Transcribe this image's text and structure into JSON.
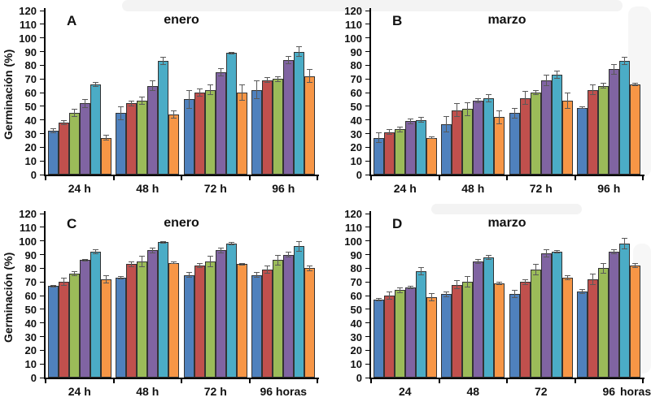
{
  "figure": {
    "y_axis_title": "Germinación (%)",
    "palette": [
      "#4F81BD",
      "#C0504D",
      "#9BBB59",
      "#8064A2",
      "#4BACC6",
      "#F79646"
    ],
    "error_bar_color": "#595959"
  },
  "chart_data": [
    {
      "type": "bar",
      "panel_label": "A",
      "title": "enero",
      "xlabel": "",
      "ylabel": "Germinación (%)",
      "x_suffix": "",
      "categories": [
        "24 h",
        "48 h",
        "72 h",
        "96 h"
      ],
      "ylim": [
        0,
        120
      ],
      "ytick_step": 10,
      "grid": false,
      "legend": "none",
      "series": [
        {
          "color": "#4F81BD",
          "values": [
            32,
            45,
            55,
            62
          ],
          "errors": [
            2,
            5,
            7,
            7
          ]
        },
        {
          "color": "#C0504D",
          "values": [
            38,
            52,
            60,
            69
          ],
          "errors": [
            2,
            2,
            3,
            2
          ]
        },
        {
          "color": "#9BBB59",
          "values": [
            45,
            54,
            62,
            70
          ],
          "errors": [
            3,
            3,
            4,
            2
          ]
        },
        {
          "color": "#8064A2",
          "values": [
            52,
            65,
            75,
            84
          ],
          "errors": [
            3,
            4,
            3,
            3
          ]
        },
        {
          "color": "#4BACC6",
          "values": [
            66,
            83,
            89,
            90
          ],
          "errors": [
            2,
            3,
            1,
            4
          ]
        },
        {
          "color": "#F79646",
          "values": [
            27,
            44,
            60,
            72
          ],
          "errors": [
            2,
            3,
            6,
            5
          ]
        }
      ]
    },
    {
      "type": "bar",
      "panel_label": "B",
      "title": "marzo",
      "xlabel": "",
      "ylabel": "",
      "x_suffix": "",
      "categories": [
        "24 h",
        "48 h",
        "72 h",
        "96 h"
      ],
      "ylim": [
        0,
        120
      ],
      "ytick_step": 10,
      "grid": false,
      "legend": "none",
      "series": [
        {
          "color": "#4F81BD",
          "values": [
            27,
            37,
            45,
            49
          ],
          "errors": [
            4,
            6,
            4,
            1
          ]
        },
        {
          "color": "#C0504D",
          "values": [
            31,
            47,
            56,
            62
          ],
          "errors": [
            2,
            5,
            5,
            4
          ]
        },
        {
          "color": "#9BBB59",
          "values": [
            33,
            48,
            60,
            65
          ],
          "errors": [
            2,
            5,
            2,
            2
          ]
        },
        {
          "color": "#8064A2",
          "values": [
            39,
            54,
            69,
            77
          ],
          "errors": [
            2,
            2,
            4,
            4
          ]
        },
        {
          "color": "#4BACC6",
          "values": [
            40,
            56,
            73,
            83
          ],
          "errors": [
            2,
            3,
            3,
            3
          ]
        },
        {
          "color": "#F79646",
          "values": [
            27,
            42,
            54,
            66
          ],
          "errors": [
            1,
            5,
            6,
            1
          ]
        }
      ]
    },
    {
      "type": "bar",
      "panel_label": "C",
      "title": "enero",
      "xlabel": "",
      "ylabel": "Germinación (%)",
      "x_suffix": "",
      "categories": [
        "24 h",
        "48 h",
        "72 h",
        "96 horas"
      ],
      "ylim": [
        0,
        120
      ],
      "ytick_step": 10,
      "grid": false,
      "legend": "none",
      "series": [
        {
          "color": "#4F81BD",
          "values": [
            67,
            73,
            75,
            75
          ],
          "errors": [
            1,
            1,
            2,
            2
          ]
        },
        {
          "color": "#C0504D",
          "values": [
            70,
            83,
            82,
            79
          ],
          "errors": [
            3,
            2,
            2,
            3
          ]
        },
        {
          "color": "#9BBB59",
          "values": [
            76,
            85,
            85,
            86
          ],
          "errors": [
            2,
            4,
            4,
            4
          ]
        },
        {
          "color": "#8064A2",
          "values": [
            86,
            93,
            93,
            90
          ],
          "errors": [
            1,
            2,
            2,
            2
          ]
        },
        {
          "color": "#4BACC6",
          "values": [
            92,
            99,
            98,
            96
          ],
          "errors": [
            2,
            1,
            1,
            4
          ]
        },
        {
          "color": "#F79646",
          "values": [
            72,
            84,
            83,
            80
          ],
          "errors": [
            3,
            1,
            1,
            2
          ]
        }
      ]
    },
    {
      "type": "bar",
      "panel_label": "D",
      "title": "marzo",
      "xlabel": "",
      "ylabel": "",
      "x_suffix": "horas",
      "categories": [
        "24",
        "48",
        "72",
        "96"
      ],
      "ylim": [
        0,
        120
      ],
      "ytick_step": 10,
      "grid": false,
      "legend": "none",
      "series": [
        {
          "color": "#4F81BD",
          "values": [
            57,
            61,
            61,
            63
          ],
          "errors": [
            1,
            2,
            3,
            2
          ]
        },
        {
          "color": "#C0504D",
          "values": [
            60,
            68,
            70,
            72
          ],
          "errors": [
            3,
            3,
            2,
            4
          ]
        },
        {
          "color": "#9BBB59",
          "values": [
            64,
            70,
            79,
            80
          ],
          "errors": [
            2,
            4,
            4,
            4
          ]
        },
        {
          "color": "#8064A2",
          "values": [
            66,
            85,
            91,
            92
          ],
          "errors": [
            1,
            2,
            3,
            2
          ]
        },
        {
          "color": "#4BACC6",
          "values": [
            78,
            88,
            92,
            98
          ],
          "errors": [
            3,
            2,
            1,
            4
          ]
        },
        {
          "color": "#F79646",
          "values": [
            59,
            69,
            73,
            82
          ],
          "errors": [
            3,
            1,
            2,
            2
          ]
        }
      ]
    }
  ]
}
